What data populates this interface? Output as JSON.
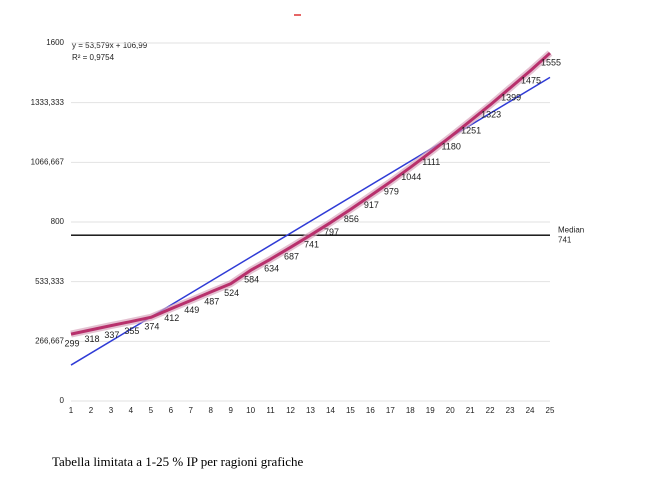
{
  "chart_data": {
    "type": "line",
    "x": [
      1,
      2,
      3,
      4,
      5,
      6,
      7,
      8,
      9,
      10,
      11,
      12,
      13,
      14,
      15,
      16,
      17,
      18,
      19,
      20,
      21,
      22,
      23,
      24,
      25
    ],
    "series": [
      {
        "color": "#b8306c",
        "values": [
          299,
          318,
          337,
          355,
          374,
          412,
          449,
          487,
          524,
          584,
          634,
          687,
          741,
          797,
          856,
          917,
          979,
          1044,
          1111,
          1180,
          1251,
          1323,
          1399,
          1475,
          1555
        ]
      }
    ],
    "xlim": [
      1,
      25
    ],
    "xticks": [
      1,
      2,
      3,
      4,
      5,
      6,
      7,
      8,
      9,
      10,
      11,
      12,
      13,
      14,
      15,
      16,
      17,
      18,
      19,
      20,
      21,
      22,
      23,
      24,
      25
    ],
    "ylim": [
      0,
      1600
    ],
    "yticks": [
      0,
      {
        "value": 266.667,
        "label": "266,667"
      },
      {
        "value": 533.333,
        "label": "533,333"
      },
      800,
      {
        "value": 1066.667,
        "label": "1066,667"
      },
      {
        "value": 1333.333,
        "label": "1333,333"
      },
      1600
    ],
    "grid": true,
    "trendline": {
      "slope": 53.579,
      "intercept": 106.99,
      "color": "#2f3bd6",
      "equation": "y = 53,579x + 106,99",
      "r2": "R² = 0,9754"
    },
    "median": {
      "label": "Median",
      "value": 741,
      "color": "#000000"
    },
    "caption": "Tabella limitata a 1-25 % IP per ragioni grafiche"
  }
}
